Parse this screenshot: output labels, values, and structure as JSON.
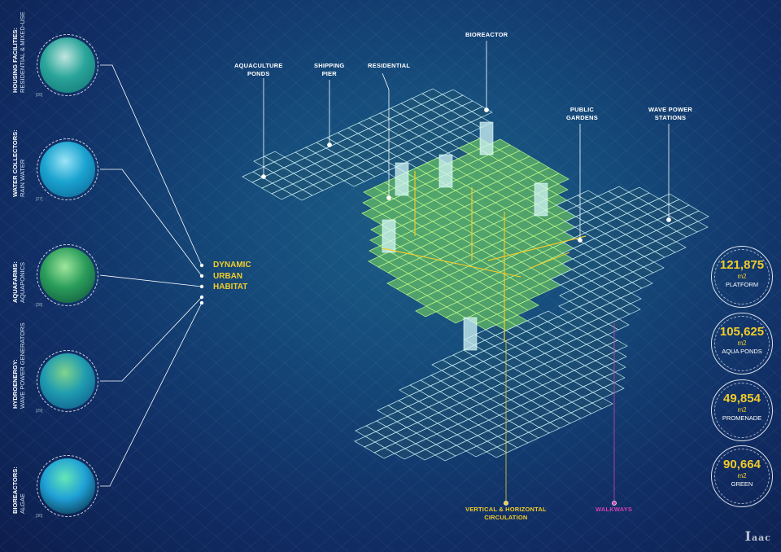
{
  "center_label": [
    "DYNAMIC",
    "URBAN",
    "HABITAT"
  ],
  "features": [
    {
      "title": "HOUSING FACILITIES:",
      "subtitle": "RESIDENTIAL & MIXED-USE",
      "cite": "[26]",
      "colors": [
        "#bfe6df",
        "#2aa59a",
        "#0f6f70"
      ]
    },
    {
      "title": "WATER COLLECTORS:",
      "subtitle": "RAIN WATER",
      "cite": "[27]",
      "colors": [
        "#9ae4f6",
        "#1aa3d0",
        "#0b5f8d"
      ]
    },
    {
      "title": "AQUAFARMS:",
      "subtitle": "AQUAPONICS",
      "cite": "[28]",
      "colors": [
        "#9ee69c",
        "#2a9d5a",
        "#0c4a3a"
      ]
    },
    {
      "title": "HYDROENERGY:",
      "subtitle": "WAVE POWER GENERATORS",
      "cite": "[29]",
      "colors": [
        "#7fd38c",
        "#1f9bb0",
        "#0d4f86"
      ]
    },
    {
      "title": "BIOREACTORS:",
      "subtitle": "ALGAE",
      "cite": "[30]",
      "colors": [
        "#64e6b8",
        "#1fa0d6",
        "#061a2c"
      ]
    }
  ],
  "map_labels": {
    "aquaculture": "AQUACULTURE\nPONDS",
    "shipping": "SHIPPING\nPIER",
    "residential": "RESIDENTIAL",
    "bioreactor": "BIOREACTOR",
    "gardens": "PUBLIC\nGARDENS",
    "wave": "WAVE POWER\nSTATIONS",
    "circulation": "VERTICAL & HORIZONTAL\nCIRCULATION",
    "walkways": "WALKWAYS"
  },
  "stats": [
    {
      "value": "121,875",
      "unit": "m2",
      "name": "PLATFORM"
    },
    {
      "value": "105,625",
      "unit": "m2",
      "name": "AQUA PONDS"
    },
    {
      "value": "49,854",
      "unit": "m2",
      "name": "PROMENADE"
    },
    {
      "value": "90,664",
      "unit": "m2",
      "name": "GREEN"
    }
  ],
  "logo": "IaaC",
  "colors": {
    "accent_yellow": "#f2cc2a",
    "walkways_magenta": "#d43fb5",
    "green_zone": "#7ee05a",
    "platform": "#bfe8f0"
  }
}
